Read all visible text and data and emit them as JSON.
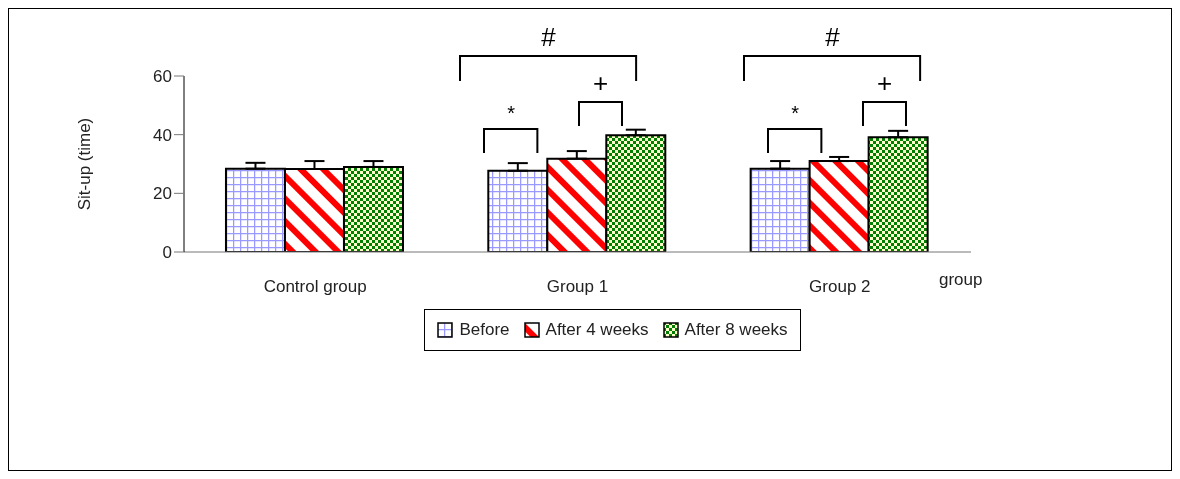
{
  "chart_data": {
    "type": "bar",
    "xlabel": "group",
    "ylabel": "Sit-up (time)",
    "categories": [
      "Control group",
      "Group 1",
      "Group 2"
    ],
    "series": [
      {
        "name": "Before",
        "color": "#9999ff",
        "values": [
          28.4,
          27.7,
          28.4
        ],
        "errors": [
          [
            28.4,
            30.4
          ],
          [
            27.7,
            30.3
          ],
          [
            28.4,
            31
          ]
        ]
      },
      {
        "name": "After 4  weeks",
        "color": "#ff0000",
        "values": [
          28.3,
          31.8,
          31
        ],
        "errors": [
          [
            28.3,
            31
          ],
          [
            31.8,
            34.4
          ],
          [
            31,
            32.4
          ]
        ]
      },
      {
        "name": "After 8  weeks",
        "color": "#008000",
        "values": [
          29,
          39.8,
          39.1
        ],
        "errors": [
          [
            29,
            31
          ],
          [
            39.8,
            41.7
          ],
          [
            39.1,
            41.3
          ]
        ]
      }
    ],
    "ylim": [
      0,
      60
    ],
    "yticks": [
      0,
      20,
      40,
      60
    ],
    "grid": false,
    "legend": "bottom",
    "annotations": [
      "#",
      "*",
      "+",
      "#",
      "*",
      "+"
    ]
  }
}
